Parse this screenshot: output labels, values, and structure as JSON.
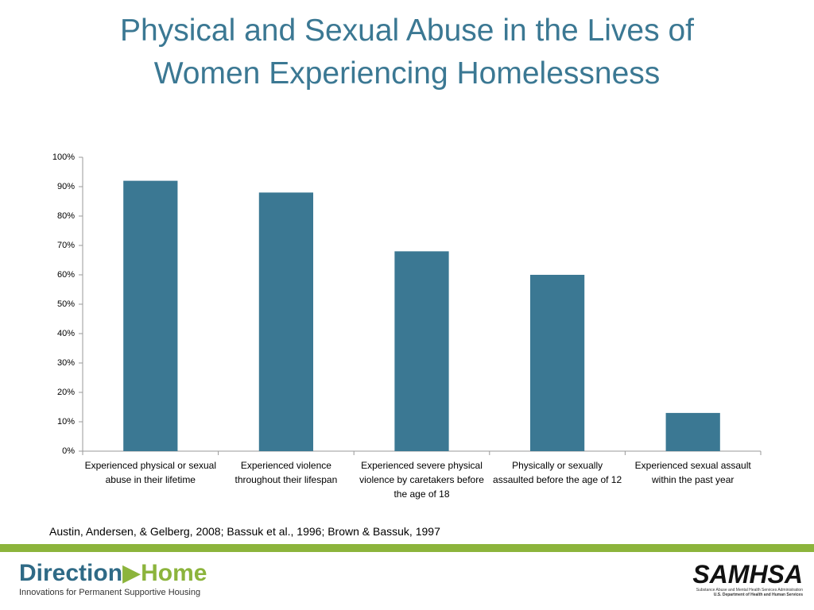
{
  "chart_data": {
    "type": "bar",
    "title": "Physical and Sexual Abuse in the Lives of Women Experiencing Homelessness",
    "categories": [
      "Experienced physical or sexual abuse in their lifetime",
      "Experienced violence throughout their lifespan",
      "Experienced severe physical violence by caretakers before the age of 18",
      "Physically or sexually assaulted before the age of 12",
      "Experienced sexual assault within the past year"
    ],
    "values": [
      92,
      88,
      68,
      60,
      13
    ],
    "color": "#3b7893",
    "ylim": [
      0,
      100
    ],
    "yticks": [
      {
        "value": 0,
        "label": "0%"
      },
      {
        "value": 10,
        "label": "10%"
      },
      {
        "value": 20,
        "label": "20%"
      },
      {
        "value": 30,
        "label": "30%"
      },
      {
        "value": 40,
        "label": "40%"
      },
      {
        "value": 50,
        "label": "50%"
      },
      {
        "value": 60,
        "label": "60%"
      },
      {
        "value": 70,
        "label": "70%"
      },
      {
        "value": 80,
        "label": "80%"
      },
      {
        "value": 90,
        "label": "90%"
      },
      {
        "value": 100,
        "label": "100%"
      }
    ],
    "grid": false,
    "source": "Austin, Andersen, & Gelberg, 2008; Bassuk et al., 1996; Brown & Bassuk, 1997"
  },
  "footer": {
    "left_logo": {
      "word1": "Direction",
      "word2": "Home",
      "tagline": "Innovations for Permanent Supportive Housing"
    },
    "right_logo": {
      "name": "SAMHSA",
      "line1": "Substance Abuse and Mental Health Services Administration",
      "line2": "U.S. Department of Health and Human Services"
    }
  }
}
